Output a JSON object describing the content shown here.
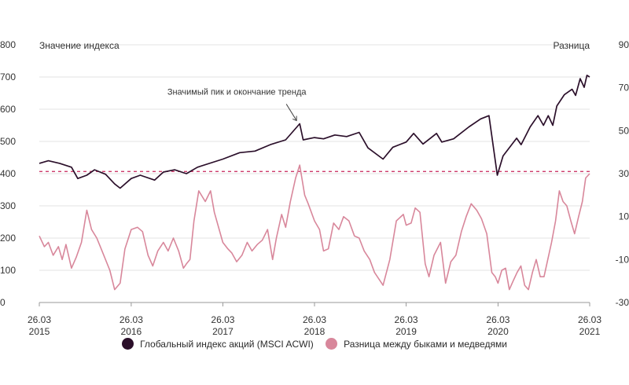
{
  "chart_data": {
    "type": "line",
    "left_axis_title": "Значение индекса",
    "right_axis_title": "Разница",
    "left_ylim": [
      0,
      800
    ],
    "right_ylim": [
      -30,
      90
    ],
    "left_ticks": [
      0,
      100,
      200,
      300,
      400,
      500,
      600,
      700,
      800
    ],
    "right_ticks": [
      -30,
      -10,
      10,
      30,
      50,
      70,
      90
    ],
    "x_range": [
      "2015-03-26",
      "2021-03-26"
    ],
    "x_ticks": [
      {
        "date": "2015-03-26",
        "line1": "26.03",
        "line2": "2015"
      },
      {
        "date": "2016-03-26",
        "line1": "26.03",
        "line2": "2016"
      },
      {
        "date": "2017-03-26",
        "line1": "26.03",
        "line2": "2017"
      },
      {
        "date": "2018-03-26",
        "line1": "26.03",
        "line2": "2018"
      },
      {
        "date": "2019-03-26",
        "line1": "26.03",
        "line2": "2019"
      },
      {
        "date": "2020-03-26",
        "line1": "26.03",
        "line2": "2020"
      },
      {
        "date": "2021-03-26",
        "line1": "26.03",
        "line2": "2021"
      }
    ],
    "reference_line": {
      "axis": "right",
      "value": 31,
      "color": "#c8245a",
      "style": "dashed"
    },
    "annotation": {
      "text": "Значимый пик и окончание тренда",
      "date": "2018-01-26",
      "value": 555
    },
    "series": [
      {
        "name": "Глобальный индекс акций (MSCI ACWI)",
        "axis": "left",
        "color": "#2b0f2a",
        "points": [
          [
            "2015-03-26",
            432
          ],
          [
            "2015-05-01",
            440
          ],
          [
            "2015-06-15",
            432
          ],
          [
            "2015-08-01",
            420
          ],
          [
            "2015-08-26",
            385
          ],
          [
            "2015-10-01",
            395
          ],
          [
            "2015-11-01",
            412
          ],
          [
            "2015-12-15",
            398
          ],
          [
            "2016-01-20",
            368
          ],
          [
            "2016-02-11",
            355
          ],
          [
            "2016-03-26",
            385
          ],
          [
            "2016-05-01",
            395
          ],
          [
            "2016-06-27",
            380
          ],
          [
            "2016-08-01",
            405
          ],
          [
            "2016-09-15",
            412
          ],
          [
            "2016-11-01",
            400
          ],
          [
            "2016-12-15",
            420
          ],
          [
            "2017-03-26",
            445
          ],
          [
            "2017-06-01",
            465
          ],
          [
            "2017-08-01",
            470
          ],
          [
            "2017-10-01",
            490
          ],
          [
            "2017-12-01",
            505
          ],
          [
            "2018-01-26",
            555
          ],
          [
            "2018-02-09",
            505
          ],
          [
            "2018-03-26",
            512
          ],
          [
            "2018-05-01",
            508
          ],
          [
            "2018-06-15",
            520
          ],
          [
            "2018-08-01",
            515
          ],
          [
            "2018-09-20",
            528
          ],
          [
            "2018-10-25",
            480
          ],
          [
            "2018-12-24",
            445
          ],
          [
            "2019-02-01",
            482
          ],
          [
            "2019-03-26",
            498
          ],
          [
            "2019-04-25",
            525
          ],
          [
            "2019-06-01",
            492
          ],
          [
            "2019-07-25",
            525
          ],
          [
            "2019-08-15",
            498
          ],
          [
            "2019-10-01",
            508
          ],
          [
            "2019-12-01",
            545
          ],
          [
            "2020-01-17",
            570
          ],
          [
            "2020-02-19",
            580
          ],
          [
            "2020-03-23",
            395
          ],
          [
            "2020-04-15",
            455
          ],
          [
            "2020-06-08",
            510
          ],
          [
            "2020-06-26",
            490
          ],
          [
            "2020-08-01",
            545
          ],
          [
            "2020-09-01",
            580
          ],
          [
            "2020-09-23",
            550
          ],
          [
            "2020-10-12",
            580
          ],
          [
            "2020-10-30",
            550
          ],
          [
            "2020-11-15",
            610
          ],
          [
            "2020-12-15",
            645
          ],
          [
            "2021-01-15",
            662
          ],
          [
            "2021-01-29",
            643
          ],
          [
            "2021-02-16",
            695
          ],
          [
            "2021-03-04",
            668
          ],
          [
            "2021-03-15",
            705
          ],
          [
            "2021-03-26",
            700
          ]
        ]
      },
      {
        "name": "Разница между быками и медведями",
        "axis": "right",
        "color": "#d8879b",
        "points": [
          [
            "2015-03-26",
            1
          ],
          [
            "2015-04-15",
            -4
          ],
          [
            "2015-05-01",
            -2
          ],
          [
            "2015-05-20",
            -8
          ],
          [
            "2015-06-10",
            -4
          ],
          [
            "2015-06-25",
            -10
          ],
          [
            "2015-07-10",
            -3
          ],
          [
            "2015-08-01",
            -14
          ],
          [
            "2015-08-20",
            -9
          ],
          [
            "2015-09-10",
            -2
          ],
          [
            "2015-10-01",
            13
          ],
          [
            "2015-10-20",
            4
          ],
          [
            "2015-11-10",
            0
          ],
          [
            "2015-12-01",
            -6
          ],
          [
            "2016-01-01",
            -15
          ],
          [
            "2016-01-20",
            -24
          ],
          [
            "2016-02-11",
            -21
          ],
          [
            "2016-03-01",
            -5
          ],
          [
            "2016-03-26",
            4
          ],
          [
            "2016-04-20",
            5
          ],
          [
            "2016-05-10",
            3
          ],
          [
            "2016-06-01",
            -8
          ],
          [
            "2016-06-20",
            -13
          ],
          [
            "2016-07-10",
            -6
          ],
          [
            "2016-08-01",
            -2
          ],
          [
            "2016-08-20",
            -6
          ],
          [
            "2016-09-10",
            0
          ],
          [
            "2016-10-01",
            -6
          ],
          [
            "2016-10-20",
            -14
          ],
          [
            "2016-11-01",
            -12
          ],
          [
            "2016-11-15",
            -10
          ],
          [
            "2016-12-01",
            8
          ],
          [
            "2016-12-20",
            22
          ],
          [
            "2017-01-15",
            17
          ],
          [
            "2017-02-05",
            22
          ],
          [
            "2017-02-20",
            12
          ],
          [
            "2017-03-26",
            -2
          ],
          [
            "2017-04-15",
            -5
          ],
          [
            "2017-05-01",
            -7
          ],
          [
            "2017-05-20",
            -11
          ],
          [
            "2017-06-10",
            -8
          ],
          [
            "2017-07-01",
            -2
          ],
          [
            "2017-07-20",
            -6
          ],
          [
            "2017-08-10",
            -3
          ],
          [
            "2017-08-30",
            -1
          ],
          [
            "2017-09-20",
            4
          ],
          [
            "2017-10-10",
            -10
          ],
          [
            "2017-10-25",
            0
          ],
          [
            "2017-11-15",
            11
          ],
          [
            "2017-12-01",
            5
          ],
          [
            "2017-12-20",
            17
          ],
          [
            "2018-01-10",
            28
          ],
          [
            "2018-01-26",
            34
          ],
          [
            "2018-02-15",
            20
          ],
          [
            "2018-03-01",
            16
          ],
          [
            "2018-03-26",
            8
          ],
          [
            "2018-04-15",
            4
          ],
          [
            "2018-05-01",
            -6
          ],
          [
            "2018-05-20",
            -5
          ],
          [
            "2018-06-10",
            7
          ],
          [
            "2018-07-01",
            4
          ],
          [
            "2018-07-20",
            10
          ],
          [
            "2018-08-10",
            8
          ],
          [
            "2018-09-01",
            1
          ],
          [
            "2018-09-20",
            0
          ],
          [
            "2018-10-10",
            -6
          ],
          [
            "2018-11-01",
            -10
          ],
          [
            "2018-11-20",
            -16
          ],
          [
            "2018-12-24",
            -22
          ],
          [
            "2019-01-20",
            -10
          ],
          [
            "2019-02-15",
            8
          ],
          [
            "2019-03-15",
            11
          ],
          [
            "2019-03-26",
            6
          ],
          [
            "2019-04-15",
            7
          ],
          [
            "2019-05-01",
            14
          ],
          [
            "2019-05-20",
            12
          ],
          [
            "2019-06-10",
            -12
          ],
          [
            "2019-06-25",
            -18
          ],
          [
            "2019-07-15",
            -8
          ],
          [
            "2019-08-10",
            -2
          ],
          [
            "2019-08-30",
            -21
          ],
          [
            "2019-09-20",
            -11
          ],
          [
            "2019-10-10",
            -8
          ],
          [
            "2019-11-01",
            3
          ],
          [
            "2019-11-20",
            10
          ],
          [
            "2019-12-10",
            16
          ],
          [
            "2020-01-01",
            13
          ],
          [
            "2020-01-20",
            9
          ],
          [
            "2020-02-10",
            2
          ],
          [
            "2020-03-01",
            -16
          ],
          [
            "2020-03-15",
            -18
          ],
          [
            "2020-03-26",
            -21
          ],
          [
            "2020-04-10",
            -15
          ],
          [
            "2020-04-25",
            -14
          ],
          [
            "2020-05-10",
            -24
          ],
          [
            "2020-05-25",
            -20
          ],
          [
            "2020-06-10",
            -16
          ],
          [
            "2020-06-25",
            -13
          ],
          [
            "2020-07-10",
            -22
          ],
          [
            "2020-07-25",
            -24
          ],
          [
            "2020-08-10",
            -16
          ],
          [
            "2020-08-25",
            -10
          ],
          [
            "2020-09-10",
            -18
          ],
          [
            "2020-09-25",
            -18
          ],
          [
            "2020-10-10",
            -10
          ],
          [
            "2020-10-25",
            -2
          ],
          [
            "2020-11-10",
            8
          ],
          [
            "2020-11-25",
            22
          ],
          [
            "2020-12-10",
            17
          ],
          [
            "2020-12-25",
            15
          ],
          [
            "2021-01-10",
            8
          ],
          [
            "2021-01-25",
            2
          ],
          [
            "2021-02-10",
            10
          ],
          [
            "2021-02-25",
            17
          ],
          [
            "2021-03-10",
            28
          ],
          [
            "2021-03-26",
            30
          ]
        ]
      }
    ]
  },
  "colors": {
    "text": "#333333",
    "grid": "#e3e3e3",
    "axis": "#999999"
  }
}
